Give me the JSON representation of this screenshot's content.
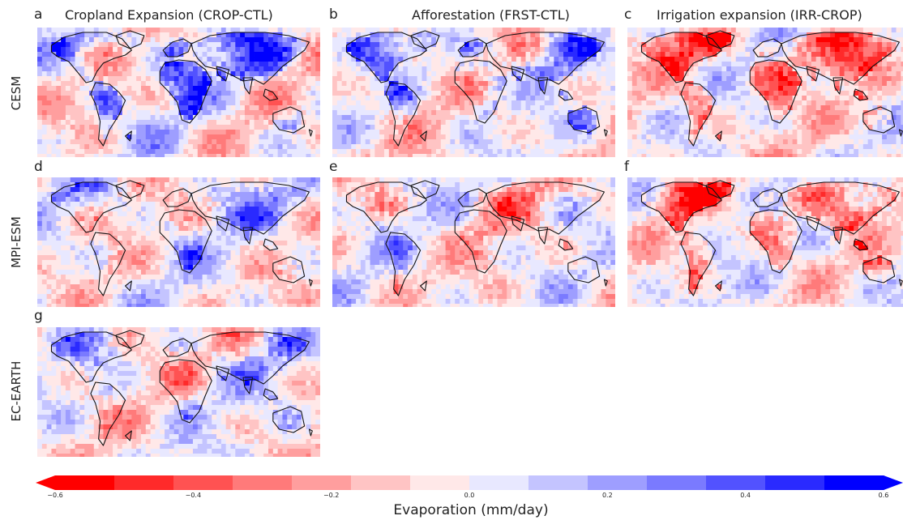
{
  "panels": [
    {
      "letter": "a",
      "column_title": "Cropland Expansion (CROP-CTL)",
      "row_label": "CESM",
      "pattern": "crop-cesm"
    },
    {
      "letter": "b",
      "column_title": "Afforestation (FRST-CTL)",
      "row_label": "CESM",
      "pattern": "frst-cesm"
    },
    {
      "letter": "c",
      "column_title": "Irrigation expansion (IRR-CROP)",
      "row_label": "CESM",
      "pattern": "irr-cesm"
    },
    {
      "letter": "d",
      "row_label": "MPI-ESM",
      "pattern": "crop-mpi"
    },
    {
      "letter": "e",
      "row_label": "MPI-ESM",
      "pattern": "frst-mpi"
    },
    {
      "letter": "f",
      "row_label": "MPI-ESM",
      "pattern": "irr-mpi"
    },
    {
      "letter": "g",
      "row_label": "EC-EARTH",
      "pattern": "crop-ec"
    }
  ],
  "row_labels": [
    "CESM",
    "MPI-ESM",
    "EC-EARTH"
  ],
  "colorbar": {
    "label": "Evaporation (mm/day)",
    "min": -0.6,
    "max": 0.6,
    "extend": "both",
    "ticks": [
      "−0.6",
      "−0.4",
      "−0.2",
      "0.0",
      "0.2",
      "0.4",
      "0.6"
    ],
    "tick_values": [
      -0.6,
      -0.4,
      -0.2,
      0.0,
      0.2,
      0.4,
      0.6
    ],
    "colors": [
      "#ff0000",
      "#ff2a2a",
      "#ff5252",
      "#ff7a7a",
      "#ff9e9e",
      "#ffc4c4",
      "#ffe8e8",
      "#e8e8ff",
      "#c4c4ff",
      "#9e9eff",
      "#7a7aff",
      "#5252ff",
      "#2a2aff",
      "#0000ff"
    ]
  }
}
